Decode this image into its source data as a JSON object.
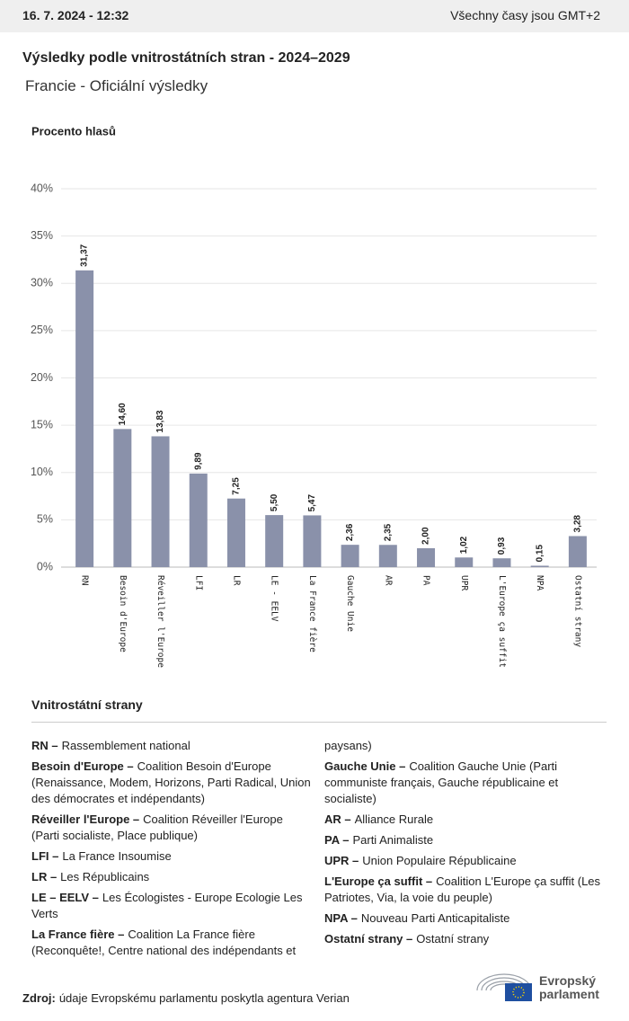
{
  "header": {
    "datetime": "16. 7. 2024 - 12:32",
    "timezone": "Všechny časy jsou GMT+2"
  },
  "chart_data": {
    "type": "bar",
    "title": "Výsledky podle vnitrostátních stran - 2024–2029",
    "subtitle": "Francie - Oficiální výsledky",
    "y_label": "Procento hlasů",
    "categories": [
      "RN",
      "Besoin d'Europe",
      "Réveiller l'Europe",
      "LFI",
      "LR",
      "LE - EELV",
      "La France fière",
      "Gauche Unie",
      "AR",
      "PA",
      "UPR",
      "L'Europe ça suffit",
      "NPA",
      "Ostatní strany"
    ],
    "values": [
      31.37,
      14.6,
      13.83,
      9.89,
      7.25,
      5.5,
      5.47,
      2.36,
      2.35,
      2.0,
      1.02,
      0.93,
      0.15,
      3.28
    ],
    "value_labels": [
      "31,37",
      "14,60",
      "13,83",
      "9,89",
      "7,25",
      "5,50",
      "5,47",
      "2,36",
      "2,35",
      "2,00",
      "1,02",
      "0,93",
      "0,15",
      "3,28"
    ],
    "color": "#8a91aa",
    "ylim": [
      0,
      40
    ],
    "yticks": [
      {
        "value": 0,
        "label": "0%"
      },
      {
        "value": 5,
        "label": "5%"
      },
      {
        "value": 10,
        "label": "10%"
      },
      {
        "value": 15,
        "label": "15%"
      },
      {
        "value": 20,
        "label": "20%"
      },
      {
        "value": 25,
        "label": "25%"
      },
      {
        "value": 30,
        "label": "30%"
      },
      {
        "value": 35,
        "label": "35%"
      },
      {
        "value": 40,
        "label": "40%"
      }
    ],
    "grid": true
  },
  "glossary": {
    "title": "Vnitrostátní strany",
    "items": [
      {
        "abbr": "RN –",
        "text": "Rassemblement national"
      },
      {
        "abbr": "Besoin d'Europe –",
        "text": "Coalition Besoin d'Europe (Renaissance, Modem, Horizons, Parti Radical, Union des démocrates et indépendants)"
      },
      {
        "abbr": "Réveiller l'Europe –",
        "text": "Coalition Réveiller l'Europe (Parti socialiste, Place publique)"
      },
      {
        "abbr": "LFI –",
        "text": "La France Insoumise"
      },
      {
        "abbr": "LR –",
        "text": "Les Républicains"
      },
      {
        "abbr": "LE – EELV –",
        "text": "Les Écologistes - Europe Ecologie Les Verts"
      },
      {
        "abbr": "La France fière –",
        "text": "Coalition La France fière (Reconquête!, Centre national des indépendants et paysans)"
      },
      {
        "abbr": "Gauche Unie –",
        "text": "Coalition Gauche Unie (Parti communiste français, Gauche républicaine et socialiste)"
      },
      {
        "abbr": "AR –",
        "text": "Alliance Rurale"
      },
      {
        "abbr": "PA –",
        "text": "Parti Animaliste"
      },
      {
        "abbr": "UPR –",
        "text": "Union Populaire Républicaine"
      },
      {
        "abbr": "L'Europe ça suffit –",
        "text": "Coalition L'Europe ça suffit (Les Patriotes, Via, la voie du peuple)"
      },
      {
        "abbr": "NPA –",
        "text": "Nouveau Parti Anticapitaliste"
      },
      {
        "abbr": "Ostatní strany –",
        "text": "Ostatní strany"
      }
    ]
  },
  "footer": {
    "source_label": "Zdroj:",
    "source_text": "údaje Evropskému parlamentu poskytla agentura Verian",
    "logo_lines": [
      "Evropský",
      "parlament"
    ]
  }
}
